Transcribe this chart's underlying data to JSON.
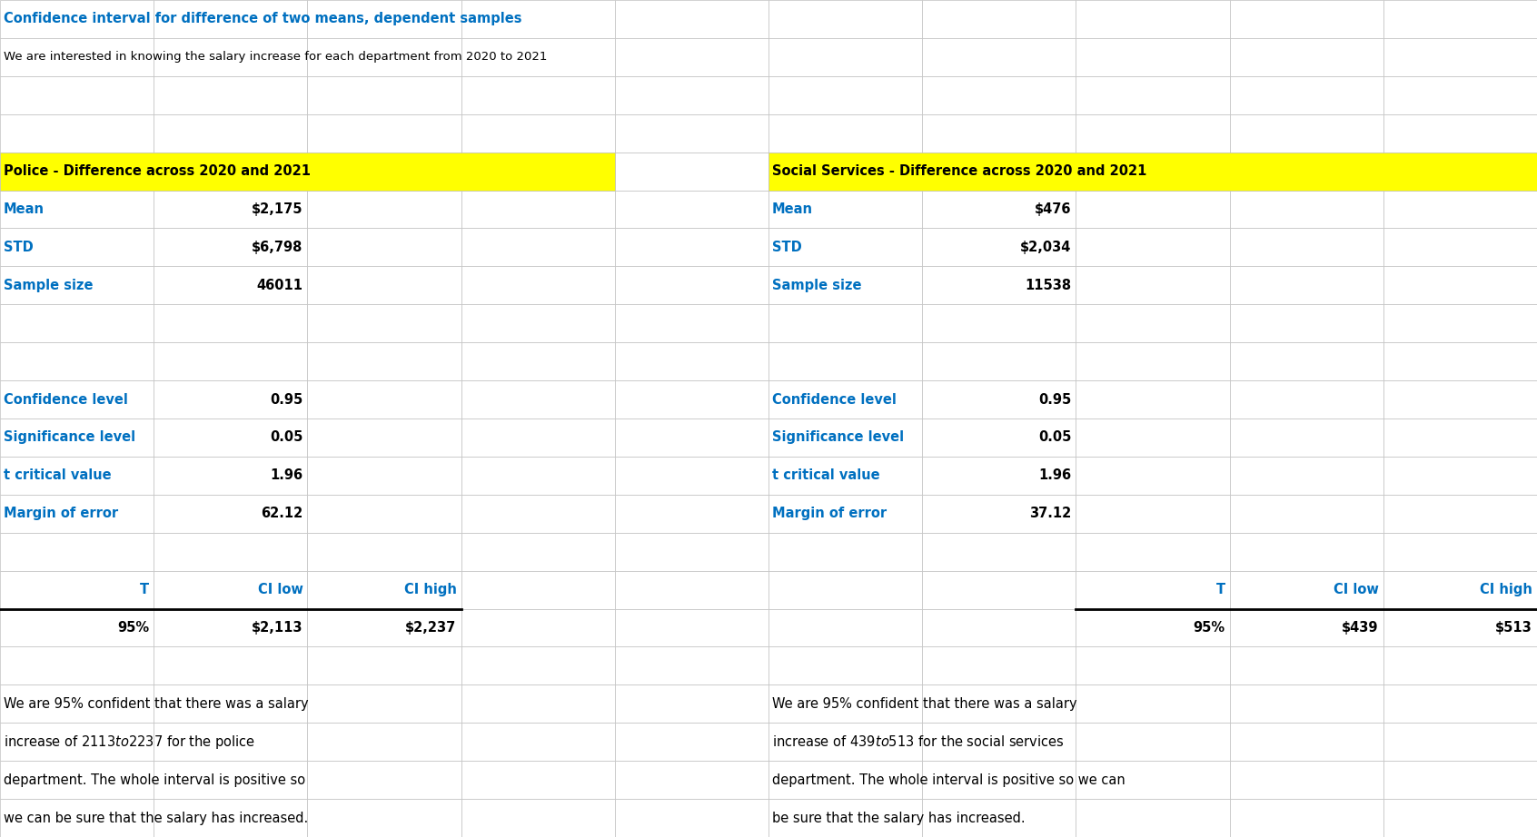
{
  "title_line1": "Confidence interval for difference of two means, dependent samples",
  "title_line2": "We are interested in knowing the salary increase for each department from 2020 to 2021",
  "police_header": "Police - Difference across 2020 and 2021",
  "social_header": "Social Services - Difference across 2020 and 2021",
  "police_stats": [
    [
      "Mean",
      "$2,175"
    ],
    [
      "STD",
      "$6,798"
    ],
    [
      "Sample size",
      "46011"
    ]
  ],
  "social_stats": [
    [
      "Mean",
      "$476"
    ],
    [
      "STD",
      "$2,034"
    ],
    [
      "Sample size",
      "11538"
    ]
  ],
  "police_ci_params": [
    [
      "Confidence level",
      "0.95"
    ],
    [
      "Significance level",
      "0.05"
    ],
    [
      "t critical value",
      "1.96"
    ],
    [
      "Margin of error",
      "62.12"
    ]
  ],
  "social_ci_params": [
    [
      "Confidence level",
      "0.95"
    ],
    [
      "Significance level",
      "0.05"
    ],
    [
      "t critical value",
      "1.96"
    ],
    [
      "Margin of error",
      "37.12"
    ]
  ],
  "police_ci_header": [
    "T",
    "CI low",
    "CI high"
  ],
  "police_ci_values": [
    "95%",
    "$2,113",
    "$2,237"
  ],
  "social_ci_header": [
    "T",
    "CI low",
    "CI high"
  ],
  "social_ci_values": [
    "95%",
    "$439",
    "$513"
  ],
  "police_conclusion": [
    "We are 95% confident that there was a salary",
    "increase of $2113 to $2237 for the police",
    "department. The whole interval is positive so",
    "we can be sure that the salary has increased."
  ],
  "social_conclusion": [
    "We are 95% confident that there was a salary",
    "increase of $439 to $513 for the social services",
    "department. The whole interval is positive so we can",
    "be sure that the salary has increased."
  ],
  "yellow_bg": "#FFFF00",
  "blue_text": "#0070C0",
  "black_text": "#000000",
  "white_bg": "#FFFFFF",
  "grid_color": "#C0C0C0",
  "figw": 16.92,
  "figh": 9.22,
  "dpi": 100,
  "n_cols": 10,
  "n_rows": 22
}
